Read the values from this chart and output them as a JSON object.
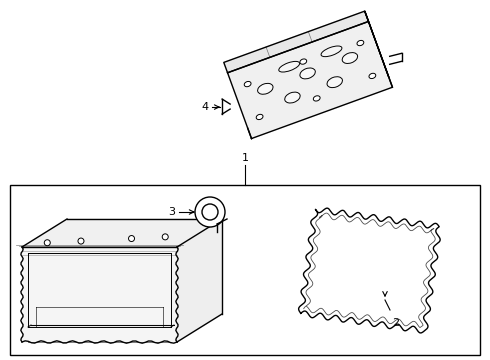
{
  "background_color": "#ffffff",
  "line_color": "#000000",
  "label_1": "1",
  "label_2": "2",
  "label_3": "3",
  "label_4": "4",
  "figsize": [
    4.9,
    3.6
  ],
  "dpi": 100
}
